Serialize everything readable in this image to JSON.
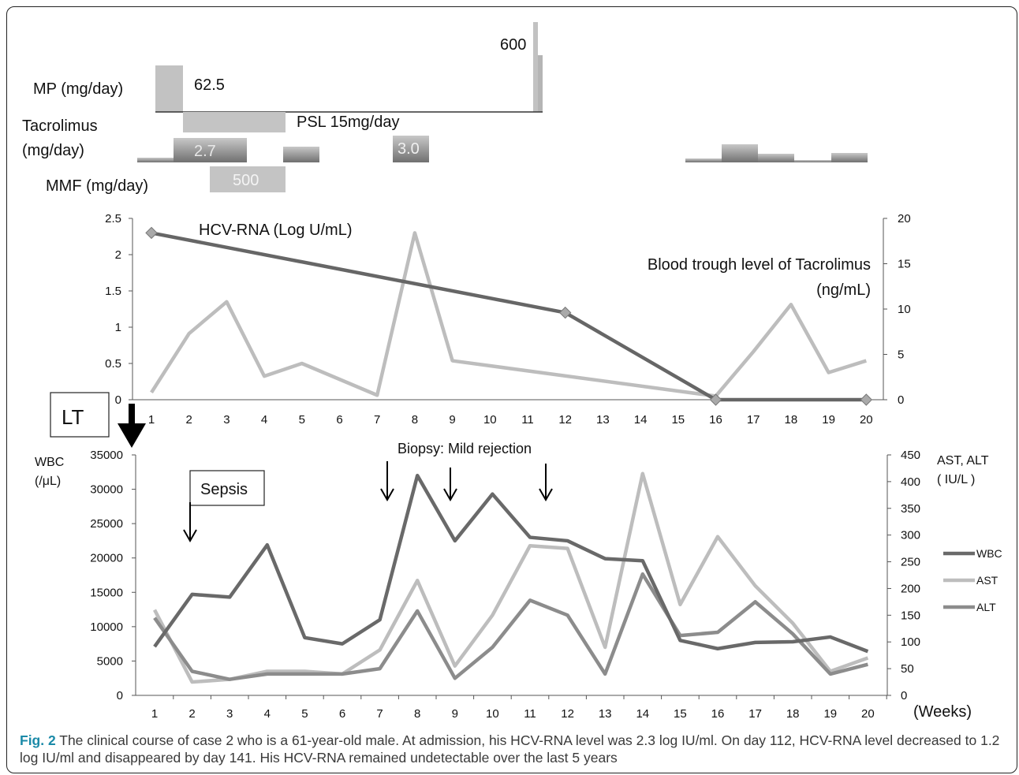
{
  "colors": {
    "dark": "#666666",
    "light": "#bcbcbc",
    "mid": "#8a8a8a",
    "bar": "#c0c0c0",
    "bar_dark": "#858585"
  },
  "treatment": {
    "mp_label": "MP (mg/day)",
    "mp_value_1": "62.5",
    "mp_value_2": "600",
    "tac_label_1": "Tacrolimus",
    "tac_label_2": "(mg/day)",
    "tac_value_1": "2.7",
    "tac_value_2": "3.0",
    "psl_label": "PSL 15mg/day",
    "mmf_label": "MMF (mg/day)",
    "mmf_value": "500"
  },
  "chart_data": [
    {
      "type": "line",
      "x": [
        1,
        2,
        3,
        4,
        5,
        6,
        7,
        8,
        9,
        10,
        11,
        12,
        13,
        14,
        15,
        16,
        17,
        18,
        19,
        20
      ],
      "x_tick_labels": [
        "1",
        "2",
        "3",
        "4",
        "5",
        "6",
        "7",
        "8",
        "9",
        "10",
        "11",
        "12",
        "13",
        "14",
        "15",
        "16",
        "17",
        "18",
        "19",
        "20"
      ],
      "y_left_ticks": [
        "0",
        "0.5",
        "1",
        "1.5",
        "2",
        "2.5"
      ],
      "y_right_ticks": [
        "0",
        "5",
        "10",
        "15",
        "20"
      ],
      "ylim_left": [
        0,
        2.5
      ],
      "ylim_right": [
        0,
        20
      ],
      "grid": false,
      "series": [
        {
          "name": "HCV-RNA (Log U/mL)",
          "axis": "left",
          "x": [
            1,
            12,
            16,
            20
          ],
          "values": [
            2.3,
            1.2,
            0,
            0
          ]
        },
        {
          "name": "Blood trough level of Tacrolimus (ng/mL)",
          "axis": "right",
          "x": [
            1,
            2,
            3,
            4,
            5,
            7,
            8,
            9,
            16,
            17,
            18,
            19,
            20
          ],
          "values": [
            0.8,
            7.3,
            10.8,
            2.6,
            4.0,
            0.5,
            18.4,
            4.3,
            0.4,
            5.3,
            10.5,
            3.0,
            4.3
          ]
        }
      ],
      "name_line_1": "Blood trough level of Tacrolimus",
      "name_line_2": "(ng/mL)"
    },
    {
      "type": "line",
      "x": [
        1,
        2,
        3,
        4,
        5,
        6,
        7,
        8,
        9,
        10,
        11,
        12,
        13,
        14,
        15,
        16,
        17,
        18,
        19,
        20
      ],
      "x_tick_labels": [
        "1",
        "2",
        "3",
        "4",
        "5",
        "6",
        "7",
        "8",
        "9",
        "10",
        "11",
        "12",
        "13",
        "14",
        "15",
        "16",
        "17",
        "18",
        "19",
        "20"
      ],
      "xlabel": "(Weeks)",
      "ylabel_left_1": "WBC",
      "ylabel_left_2": "(/μL)",
      "ylabel_right_1": "AST, ALT",
      "ylabel_right_2": "( IU/L )",
      "y_left_ticks": [
        "0",
        "5000",
        "10000",
        "15000",
        "20000",
        "25000",
        "30000",
        "35000"
      ],
      "y_right_ticks": [
        "0",
        "50",
        "100",
        "150",
        "200",
        "250",
        "300",
        "350",
        "400",
        "450"
      ],
      "ylim_left": [
        0,
        35000
      ],
      "ylim_right": [
        0,
        450
      ],
      "legend_position": "right",
      "grid": false,
      "series": [
        {
          "name": "WBC",
          "axis": "left",
          "values": [
            7100,
            14700,
            14300,
            21900,
            8400,
            7500,
            11000,
            32000,
            22500,
            29300,
            23000,
            22500,
            19900,
            19600,
            8000,
            6800,
            7700,
            7800,
            8500,
            6400
          ]
        },
        {
          "name": "AST",
          "axis": "right",
          "values": [
            160,
            25,
            30,
            45,
            45,
            40,
            85,
            215,
            55,
            150,
            280,
            275,
            90,
            415,
            170,
            297,
            205,
            135,
            45,
            70
          ]
        },
        {
          "name": "ALT",
          "axis": "right",
          "values": [
            145,
            45,
            30,
            40,
            40,
            40,
            50,
            158,
            32,
            90,
            178,
            150,
            40,
            227,
            112,
            118,
            175,
            115,
            40,
            58
          ]
        }
      ],
      "annotations": {
        "lt": "LT",
        "sepsis": "Sepsis",
        "biopsy": "Biopsy: Mild rejection"
      }
    }
  ],
  "caption": {
    "label": "Fig. 2",
    "text": " The clinical course of case 2 who is a 61-year-old male. At admission, his HCV-RNA level was 2.3 log IU/ml. On day 112, HCV-RNA level decreased to 1.2 log IU/ml and disappeared by day 141. His HCV-RNA remained undetectable over the last 5 years"
  }
}
